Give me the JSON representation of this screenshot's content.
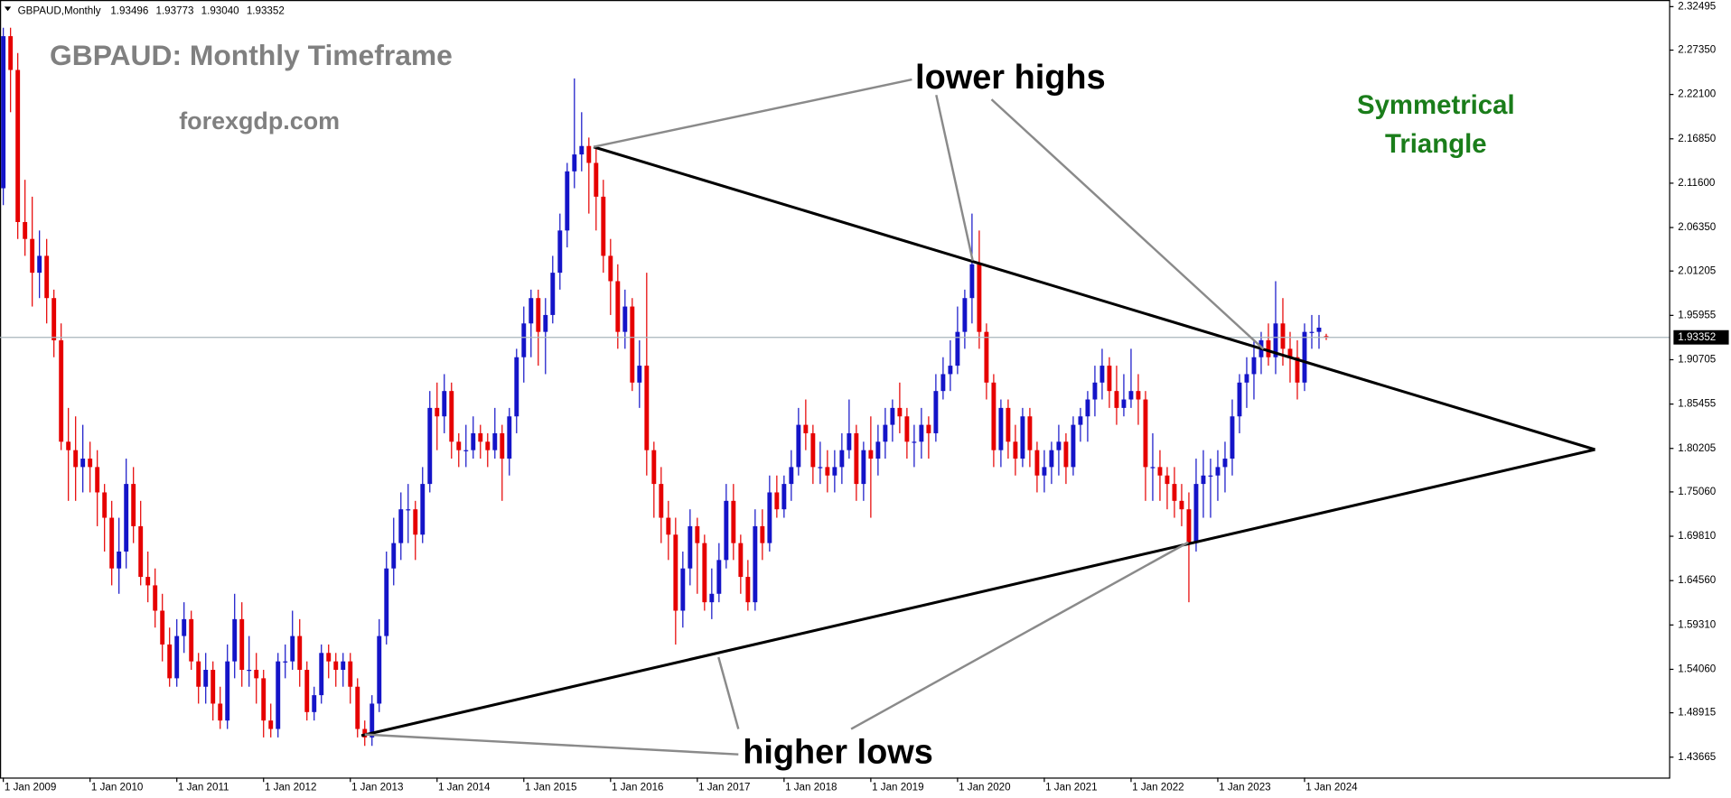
{
  "chart_data": {
    "type": "candlestick",
    "symbol": "GBPAUD,Monthly",
    "last_bar_labels": [
      "1.93496",
      "1.93773",
      "1.93040",
      "1.93352"
    ],
    "annotations": {
      "title": "GBPAUD: Monthly Timeframe",
      "site": "forexgdp.com",
      "pattern": [
        "Symmetrical",
        "Triangle"
      ],
      "upper": "lower highs",
      "lower": "higher lows"
    },
    "colors": {
      "up": "#1414c8",
      "down": "#e60000",
      "price_line": "#a8b4bc"
    },
    "ylim": [
      1.4125,
      2.3328
    ],
    "yticks": [
      2.32495,
      {
        "value": 2.2735,
        "label": "2.27350"
      },
      {
        "value": 2.221,
        "label": "2.22100"
      },
      {
        "value": 2.1685,
        "label": "2.16850"
      },
      {
        "value": 2.116,
        "label": "2.11600"
      },
      {
        "value": 2.0635,
        "label": "2.06350"
      },
      2.01205,
      1.95955,
      1.90705,
      1.85455,
      1.80205,
      {
        "value": 1.7506,
        "label": "1.75060"
      },
      {
        "value": 1.6981,
        "label": "1.69810"
      },
      {
        "value": 1.6456,
        "label": "1.64560"
      },
      {
        "value": 1.5931,
        "label": "1.59310"
      },
      {
        "value": 1.5406,
        "label": "1.54060"
      },
      1.48915,
      1.43665
    ],
    "categories": [
      "1 Jan 2009",
      null,
      null,
      null,
      null,
      null,
      null,
      null,
      null,
      null,
      null,
      null,
      "1 Jan 2010",
      null,
      null,
      null,
      null,
      null,
      null,
      null,
      null,
      null,
      null,
      null,
      "1 Jan 2011",
      null,
      null,
      null,
      null,
      null,
      null,
      null,
      null,
      null,
      null,
      null,
      "1 Jan 2012",
      null,
      null,
      null,
      null,
      null,
      null,
      null,
      null,
      null,
      null,
      null,
      "1 Jan 2013",
      null,
      null,
      null,
      null,
      null,
      null,
      null,
      null,
      null,
      null,
      null,
      "1 Jan 2014",
      null,
      null,
      null,
      null,
      null,
      null,
      null,
      null,
      null,
      null,
      null,
      "1 Jan 2015",
      null,
      null,
      null,
      null,
      null,
      null,
      null,
      null,
      null,
      null,
      null,
      "1 Jan 2016",
      null,
      null,
      null,
      null,
      null,
      null,
      null,
      null,
      null,
      null,
      null,
      "1 Jan 2017",
      null,
      null,
      null,
      null,
      null,
      null,
      null,
      null,
      null,
      null,
      null,
      "1 Jan 2018",
      null,
      null,
      null,
      null,
      null,
      null,
      null,
      null,
      null,
      null,
      null,
      "1 Jan 2019",
      null,
      null,
      null,
      null,
      null,
      null,
      null,
      null,
      null,
      null,
      null,
      "1 Jan 2020",
      null,
      null,
      null,
      null,
      null,
      null,
      null,
      null,
      null,
      null,
      null,
      "1 Jan 2021",
      null,
      null,
      null,
      null,
      null,
      null,
      null,
      null,
      null,
      null,
      null,
      "1 Jan 2022",
      null,
      null,
      null,
      null,
      null,
      null,
      null,
      null,
      null,
      null,
      null,
      "1 Jan 2023",
      null,
      null,
      null,
      null,
      null,
      null,
      null,
      null,
      null,
      null,
      null,
      "1 Jan 2024",
      null,
      null,
      null
    ],
    "ohlc": [
      [
        2.11,
        2.3,
        2.09,
        2.29
      ],
      [
        2.29,
        2.3,
        2.2,
        2.25
      ],
      [
        2.25,
        2.27,
        2.05,
        2.07
      ],
      [
        2.07,
        2.12,
        2.03,
        2.05
      ],
      [
        2.05,
        2.1,
        1.97,
        2.01
      ],
      [
        2.01,
        2.06,
        1.98,
        2.03
      ],
      [
        2.03,
        2.05,
        1.95,
        1.98
      ],
      [
        1.98,
        1.99,
        1.91,
        1.93
      ],
      [
        1.93,
        1.95,
        1.8,
        1.81
      ],
      [
        1.81,
        1.85,
        1.74,
        1.8
      ],
      [
        1.8,
        1.84,
        1.74,
        1.78
      ],
      [
        1.78,
        1.83,
        1.75,
        1.79
      ],
      [
        1.79,
        1.81,
        1.75,
        1.78
      ],
      [
        1.78,
        1.8,
        1.71,
        1.75
      ],
      [
        1.75,
        1.76,
        1.68,
        1.72
      ],
      [
        1.72,
        1.74,
        1.64,
        1.66
      ],
      [
        1.66,
        1.72,
        1.63,
        1.68
      ],
      [
        1.68,
        1.79,
        1.66,
        1.76
      ],
      [
        1.76,
        1.78,
        1.69,
        1.71
      ],
      [
        1.71,
        1.74,
        1.64,
        1.65
      ],
      [
        1.65,
        1.68,
        1.62,
        1.64
      ],
      [
        1.64,
        1.66,
        1.59,
        1.61
      ],
      [
        1.61,
        1.63,
        1.55,
        1.57
      ],
      [
        1.57,
        1.59,
        1.52,
        1.53
      ],
      [
        1.53,
        1.6,
        1.52,
        1.58
      ],
      [
        1.58,
        1.62,
        1.56,
        1.6
      ],
      [
        1.6,
        1.61,
        1.54,
        1.55
      ],
      [
        1.55,
        1.56,
        1.5,
        1.52
      ],
      [
        1.52,
        1.56,
        1.5,
        1.54
      ],
      [
        1.54,
        1.55,
        1.48,
        1.5
      ],
      [
        1.5,
        1.52,
        1.47,
        1.48
      ],
      [
        1.48,
        1.57,
        1.47,
        1.55
      ],
      [
        1.55,
        1.63,
        1.53,
        1.6
      ],
      [
        1.6,
        1.62,
        1.52,
        1.54
      ],
      [
        1.54,
        1.58,
        1.52,
        1.54
      ],
      [
        1.54,
        1.56,
        1.5,
        1.53
      ],
      [
        1.53,
        1.54,
        1.46,
        1.48
      ],
      [
        1.48,
        1.5,
        1.46,
        1.47
      ],
      [
        1.47,
        1.56,
        1.46,
        1.55
      ],
      [
        1.55,
        1.57,
        1.53,
        1.55
      ],
      [
        1.55,
        1.61,
        1.54,
        1.58
      ],
      [
        1.58,
        1.6,
        1.52,
        1.54
      ],
      [
        1.54,
        1.55,
        1.48,
        1.49
      ],
      [
        1.49,
        1.52,
        1.48,
        1.51
      ],
      [
        1.51,
        1.57,
        1.5,
        1.56
      ],
      [
        1.56,
        1.57,
        1.53,
        1.55
      ],
      [
        1.55,
        1.56,
        1.52,
        1.54
      ],
      [
        1.54,
        1.56,
        1.52,
        1.55
      ],
      [
        1.55,
        1.56,
        1.5,
        1.52
      ],
      [
        1.52,
        1.53,
        1.46,
        1.47
      ],
      [
        1.47,
        1.48,
        1.45,
        1.46
      ],
      [
        1.46,
        1.51,
        1.45,
        1.5
      ],
      [
        1.5,
        1.6,
        1.49,
        1.58
      ],
      [
        1.58,
        1.68,
        1.57,
        1.66
      ],
      [
        1.66,
        1.72,
        1.64,
        1.69
      ],
      [
        1.69,
        1.75,
        1.67,
        1.73
      ],
      [
        1.73,
        1.76,
        1.69,
        1.73
      ],
      [
        1.73,
        1.74,
        1.67,
        1.7
      ],
      [
        1.7,
        1.78,
        1.69,
        1.76
      ],
      [
        1.76,
        1.87,
        1.75,
        1.85
      ],
      [
        1.85,
        1.88,
        1.8,
        1.84
      ],
      [
        1.84,
        1.89,
        1.82,
        1.87
      ],
      [
        1.87,
        1.88,
        1.79,
        1.81
      ],
      [
        1.81,
        1.82,
        1.78,
        1.8
      ],
      [
        1.8,
        1.83,
        1.78,
        1.8
      ],
      [
        1.8,
        1.84,
        1.79,
        1.82
      ],
      [
        1.82,
        1.83,
        1.79,
        1.81
      ],
      [
        1.81,
        1.82,
        1.78,
        1.8
      ],
      [
        1.8,
        1.85,
        1.79,
        1.82
      ],
      [
        1.82,
        1.83,
        1.74,
        1.79
      ],
      [
        1.79,
        1.85,
        1.77,
        1.84
      ],
      [
        1.84,
        1.92,
        1.82,
        1.91
      ],
      [
        1.91,
        1.97,
        1.88,
        1.95
      ],
      [
        1.95,
        1.99,
        1.91,
        1.98
      ],
      [
        1.98,
        1.99,
        1.9,
        1.94
      ],
      [
        1.94,
        1.98,
        1.89,
        1.96
      ],
      [
        1.96,
        2.03,
        1.95,
        2.01
      ],
      [
        2.01,
        2.08,
        1.99,
        2.06
      ],
      [
        2.06,
        2.14,
        2.04,
        2.13
      ],
      [
        2.13,
        2.24,
        2.11,
        2.15
      ],
      [
        2.15,
        2.2,
        2.13,
        2.16
      ],
      [
        2.16,
        2.17,
        2.08,
        2.14
      ],
      [
        2.14,
        2.16,
        2.06,
        2.1
      ],
      [
        2.1,
        2.12,
        2.01,
        2.03
      ],
      [
        2.03,
        2.05,
        1.96,
        2.0
      ],
      [
        2.0,
        2.02,
        1.92,
        1.94
      ],
      [
        1.94,
        1.99,
        1.92,
        1.97
      ],
      [
        1.97,
        1.98,
        1.87,
        1.88
      ],
      [
        1.88,
        1.93,
        1.85,
        1.9
      ],
      [
        1.9,
        2.01,
        1.77,
        1.8
      ],
      [
        1.8,
        1.81,
        1.72,
        1.76
      ],
      [
        1.76,
        1.78,
        1.69,
        1.72
      ],
      [
        1.72,
        1.74,
        1.67,
        1.7
      ],
      [
        1.7,
        1.72,
        1.57,
        1.61
      ],
      [
        1.61,
        1.68,
        1.59,
        1.66
      ],
      [
        1.66,
        1.73,
        1.64,
        1.71
      ],
      [
        1.71,
        1.72,
        1.63,
        1.69
      ],
      [
        1.69,
        1.7,
        1.61,
        1.62
      ],
      [
        1.62,
        1.66,
        1.6,
        1.63
      ],
      [
        1.63,
        1.69,
        1.62,
        1.67
      ],
      [
        1.67,
        1.76,
        1.66,
        1.74
      ],
      [
        1.74,
        1.76,
        1.67,
        1.69
      ],
      [
        1.69,
        1.7,
        1.63,
        1.65
      ],
      [
        1.65,
        1.67,
        1.61,
        1.62
      ],
      [
        1.62,
        1.73,
        1.61,
        1.71
      ],
      [
        1.71,
        1.73,
        1.67,
        1.69
      ],
      [
        1.69,
        1.77,
        1.68,
        1.75
      ],
      [
        1.75,
        1.77,
        1.72,
        1.73
      ],
      [
        1.73,
        1.77,
        1.72,
        1.76
      ],
      [
        1.76,
        1.8,
        1.74,
        1.78
      ],
      [
        1.78,
        1.85,
        1.77,
        1.83
      ],
      [
        1.83,
        1.86,
        1.8,
        1.82
      ],
      [
        1.82,
        1.83,
        1.76,
        1.78
      ],
      [
        1.78,
        1.81,
        1.76,
        1.78
      ],
      [
        1.78,
        1.8,
        1.75,
        1.77
      ],
      [
        1.77,
        1.8,
        1.75,
        1.78
      ],
      [
        1.78,
        1.82,
        1.76,
        1.8
      ],
      [
        1.8,
        1.86,
        1.79,
        1.82
      ],
      [
        1.82,
        1.83,
        1.74,
        1.76
      ],
      [
        1.76,
        1.81,
        1.74,
        1.8
      ],
      [
        1.8,
        1.84,
        1.72,
        1.79
      ],
      [
        1.79,
        1.83,
        1.77,
        1.81
      ],
      [
        1.81,
        1.85,
        1.79,
        1.83
      ],
      [
        1.83,
        1.86,
        1.81,
        1.85
      ],
      [
        1.85,
        1.88,
        1.82,
        1.84
      ],
      [
        1.84,
        1.85,
        1.79,
        1.81
      ],
      [
        1.81,
        1.83,
        1.78,
        1.81
      ],
      [
        1.81,
        1.85,
        1.79,
        1.83
      ],
      [
        1.83,
        1.84,
        1.79,
        1.82
      ],
      [
        1.82,
        1.89,
        1.81,
        1.87
      ],
      [
        1.87,
        1.91,
        1.86,
        1.89
      ],
      [
        1.89,
        1.93,
        1.87,
        1.9
      ],
      [
        1.9,
        1.97,
        1.89,
        1.94
      ],
      [
        1.94,
        1.99,
        1.92,
        1.98
      ],
      [
        1.98,
        2.08,
        1.95,
        2.02
      ],
      [
        2.02,
        2.06,
        1.92,
        1.94
      ],
      [
        1.94,
        1.95,
        1.86,
        1.88
      ],
      [
        1.88,
        1.89,
        1.78,
        1.8
      ],
      [
        1.8,
        1.86,
        1.78,
        1.85
      ],
      [
        1.85,
        1.86,
        1.79,
        1.81
      ],
      [
        1.81,
        1.83,
        1.77,
        1.79
      ],
      [
        1.79,
        1.85,
        1.78,
        1.84
      ],
      [
        1.84,
        1.85,
        1.78,
        1.8
      ],
      [
        1.8,
        1.81,
        1.75,
        1.77
      ],
      [
        1.77,
        1.8,
        1.75,
        1.78
      ],
      [
        1.78,
        1.81,
        1.76,
        1.8
      ],
      [
        1.8,
        1.83,
        1.77,
        1.81
      ],
      [
        1.81,
        1.82,
        1.76,
        1.78
      ],
      [
        1.78,
        1.84,
        1.77,
        1.83
      ],
      [
        1.83,
        1.85,
        1.81,
        1.84
      ],
      [
        1.84,
        1.87,
        1.81,
        1.86
      ],
      [
        1.86,
        1.9,
        1.84,
        1.88
      ],
      [
        1.88,
        1.92,
        1.86,
        1.9
      ],
      [
        1.9,
        1.91,
        1.85,
        1.87
      ],
      [
        1.87,
        1.9,
        1.83,
        1.85
      ],
      [
        1.85,
        1.89,
        1.84,
        1.86
      ],
      [
        1.86,
        1.92,
        1.85,
        1.87
      ],
      [
        1.87,
        1.89,
        1.83,
        1.86
      ],
      [
        1.86,
        1.87,
        1.74,
        1.78
      ],
      [
        1.78,
        1.82,
        1.74,
        1.78
      ],
      [
        1.78,
        1.8,
        1.74,
        1.77
      ],
      [
        1.77,
        1.78,
        1.73,
        1.76
      ],
      [
        1.76,
        1.78,
        1.72,
        1.74
      ],
      [
        1.74,
        1.76,
        1.71,
        1.73
      ],
      [
        1.73,
        1.75,
        1.62,
        1.69
      ],
      [
        1.69,
        1.79,
        1.68,
        1.76
      ],
      [
        1.76,
        1.8,
        1.72,
        1.77
      ],
      [
        1.77,
        1.79,
        1.72,
        1.77
      ],
      [
        1.77,
        1.8,
        1.74,
        1.78
      ],
      [
        1.78,
        1.81,
        1.75,
        1.79
      ],
      [
        1.79,
        1.86,
        1.77,
        1.84
      ],
      [
        1.84,
        1.89,
        1.82,
        1.88
      ],
      [
        1.88,
        1.91,
        1.85,
        1.89
      ],
      [
        1.89,
        1.93,
        1.86,
        1.91
      ],
      [
        1.91,
        1.94,
        1.89,
        1.93
      ],
      [
        1.93,
        1.95,
        1.9,
        1.91
      ],
      [
        1.91,
        2.0,
        1.89,
        1.95
      ],
      [
        1.95,
        1.98,
        1.9,
        1.92
      ],
      [
        1.92,
        1.94,
        1.88,
        1.91
      ],
      [
        1.91,
        1.93,
        1.86,
        1.88
      ],
      [
        1.88,
        1.95,
        1.87,
        1.94
      ],
      [
        1.94,
        1.96,
        1.92,
        1.94
      ],
      [
        1.94,
        1.96,
        1.92,
        1.945
      ],
      [
        1.93496,
        1.93773,
        1.9304,
        1.93352
      ]
    ]
  }
}
